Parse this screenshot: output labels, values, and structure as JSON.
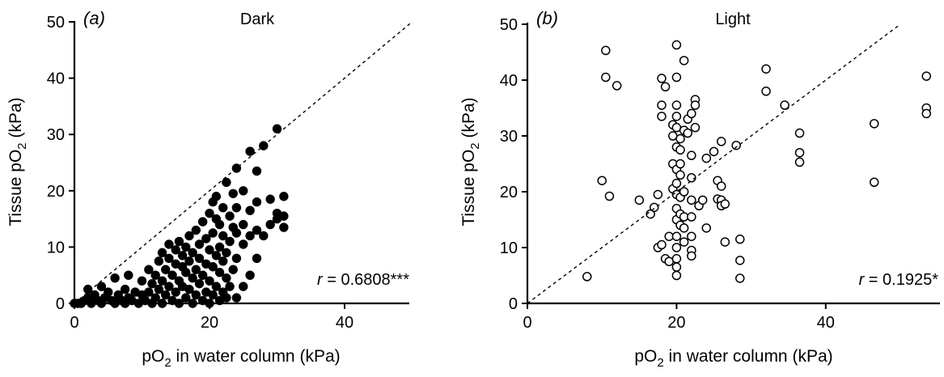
{
  "chart_data": [
    {
      "panel_label_letter": "a",
      "type": "scatter",
      "title": "Dark",
      "xlabel": {
        "pre": "pO",
        "sub": "2",
        "post": " in water column (kPa)"
      },
      "ylabel": {
        "pre": "Tissue pO",
        "sub": "2",
        "post": " (kPa)"
      },
      "xlim": [
        0,
        55
      ],
      "ylim": [
        0,
        50
      ],
      "xticks": [
        0,
        20,
        40
      ],
      "yticks": [
        0,
        10,
        20,
        30,
        40,
        50
      ],
      "marker": "filled-circle",
      "reference_line": "y = x (dashed)",
      "stat": {
        "r_label": "r",
        "r_value": " = 0.6808***"
      },
      "grid": false,
      "points": [
        [
          0,
          0
        ],
        [
          0.5,
          0
        ],
        [
          1,
          0
        ],
        [
          1.5,
          0.5
        ],
        [
          2,
          1
        ],
        [
          2,
          2.5
        ],
        [
          2.5,
          0
        ],
        [
          3,
          1.5
        ],
        [
          3.5,
          0.5
        ],
        [
          4,
          0
        ],
        [
          4,
          3
        ],
        [
          4.5,
          1
        ],
        [
          5,
          2
        ],
        [
          5.5,
          0.5
        ],
        [
          6,
          0
        ],
        [
          6,
          4.5
        ],
        [
          6.5,
          1.5
        ],
        [
          7,
          0.5
        ],
        [
          7.5,
          0
        ],
        [
          7.5,
          2.5
        ],
        [
          8,
          1
        ],
        [
          8,
          5
        ],
        [
          8.5,
          0.5
        ],
        [
          9,
          2
        ],
        [
          9.5,
          0
        ],
        [
          10,
          1.5
        ],
        [
          10,
          4
        ],
        [
          10.5,
          0.5
        ],
        [
          11,
          2
        ],
        [
          11,
          6
        ],
        [
          11.5,
          0
        ],
        [
          11.5,
          3.5
        ],
        [
          12,
          1
        ],
        [
          12,
          5
        ],
        [
          12.5,
          2.5
        ],
        [
          12.5,
          7.5
        ],
        [
          13,
          0
        ],
        [
          13,
          4
        ],
        [
          13,
          9
        ],
        [
          13.5,
          1.5
        ],
        [
          13.5,
          6
        ],
        [
          14,
          3
        ],
        [
          14,
          8
        ],
        [
          14,
          10.5
        ],
        [
          14.5,
          0.5
        ],
        [
          14.5,
          5
        ],
        [
          15,
          2
        ],
        [
          15,
          7
        ],
        [
          15,
          9.5
        ],
        [
          15.5,
          0
        ],
        [
          15.5,
          4
        ],
        [
          15.5,
          11
        ],
        [
          16,
          3
        ],
        [
          16,
          6.5
        ],
        [
          16,
          8.5
        ],
        [
          16.5,
          1
        ],
        [
          16.5,
          5.5
        ],
        [
          16.5,
          10
        ],
        [
          17,
          2.5
        ],
        [
          17,
          7.5
        ],
        [
          17,
          12
        ],
        [
          17.5,
          0
        ],
        [
          17.5,
          4.5
        ],
        [
          17.5,
          9
        ],
        [
          18,
          1.5
        ],
        [
          18,
          6
        ],
        [
          18,
          13
        ],
        [
          18.5,
          3.5
        ],
        [
          18.5,
          8
        ],
        [
          18.5,
          10.5
        ],
        [
          19,
          0.5
        ],
        [
          19,
          5
        ],
        [
          19,
          14.5
        ],
        [
          19.5,
          2
        ],
        [
          19.5,
          7
        ],
        [
          19.5,
          11.5
        ],
        [
          20,
          0
        ],
        [
          20,
          4
        ],
        [
          20,
          9.5
        ],
        [
          20,
          16
        ],
        [
          20.5,
          1.5
        ],
        [
          20.5,
          6.5
        ],
        [
          20.5,
          12.5
        ],
        [
          20.5,
          18
        ],
        [
          21,
          3
        ],
        [
          21,
          8.5
        ],
        [
          21,
          15
        ],
        [
          21,
          19
        ],
        [
          21.5,
          0.5
        ],
        [
          21.5,
          5.5
        ],
        [
          21.5,
          10
        ],
        [
          21.5,
          14
        ],
        [
          22,
          2
        ],
        [
          22,
          7.5
        ],
        [
          22,
          12
        ],
        [
          22,
          17
        ],
        [
          22.5,
          1
        ],
        [
          22.5,
          4.5
        ],
        [
          22.5,
          9
        ],
        [
          22.5,
          21.5
        ],
        [
          23,
          3
        ],
        [
          23,
          11
        ],
        [
          23,
          15.5
        ],
        [
          23.5,
          6
        ],
        [
          23.5,
          13.5
        ],
        [
          23.5,
          19.5
        ],
        [
          24,
          1
        ],
        [
          24,
          8
        ],
        [
          24,
          12.5
        ],
        [
          24,
          17
        ],
        [
          24,
          24
        ],
        [
          25,
          3
        ],
        [
          25,
          10.5
        ],
        [
          25,
          14
        ],
        [
          25,
          20
        ],
        [
          26,
          5
        ],
        [
          26,
          12
        ],
        [
          26,
          16.5
        ],
        [
          26,
          27
        ],
        [
          27,
          8
        ],
        [
          27,
          13
        ],
        [
          27,
          18
        ],
        [
          27,
          23.5
        ],
        [
          28,
          12
        ],
        [
          28,
          28
        ],
        [
          29,
          14
        ],
        [
          29,
          18.5
        ],
        [
          30,
          15
        ],
        [
          30,
          16
        ],
        [
          30,
          31
        ],
        [
          31,
          13.5
        ],
        [
          31,
          15.5
        ],
        [
          31,
          19
        ]
      ]
    },
    {
      "panel_label_letter": "b",
      "type": "scatter",
      "title": "Light",
      "xlabel": {
        "pre": "pO",
        "sub": "2",
        "post": " in water column (kPa)"
      },
      "ylabel": {
        "pre": "Tissue pO",
        "sub": "2",
        "post": " (kPa)"
      },
      "xlim": [
        0,
        55
      ],
      "ylim": [
        0,
        50
      ],
      "xticks": [
        0,
        20,
        40
      ],
      "yticks": [
        0,
        10,
        20,
        30,
        40,
        50
      ],
      "marker": "open-circle",
      "reference_line": "y = x (dashed)",
      "stat": {
        "r_label": "r",
        "r_value": " = 0.1925*"
      },
      "grid": false,
      "points": [
        [
          8,
          4.8
        ],
        [
          10,
          22
        ],
        [
          10.5,
          45.3
        ],
        [
          10.5,
          40.5
        ],
        [
          11,
          19.2
        ],
        [
          12,
          39
        ],
        [
          15,
          18.5
        ],
        [
          16.5,
          16
        ],
        [
          17,
          17.2
        ],
        [
          17.5,
          19.5
        ],
        [
          17.5,
          10
        ],
        [
          18,
          35.5
        ],
        [
          18,
          33.5
        ],
        [
          18,
          40.3
        ],
        [
          18,
          10.5
        ],
        [
          18.5,
          38.8
        ],
        [
          18.5,
          8
        ],
        [
          19,
          12
        ],
        [
          19,
          7.5
        ],
        [
          19.5,
          32
        ],
        [
          19.5,
          30
        ],
        [
          19.5,
          25
        ],
        [
          19.5,
          20.5
        ],
        [
          20,
          46.3
        ],
        [
          20,
          40.5
        ],
        [
          20,
          35.5
        ],
        [
          20,
          33.5
        ],
        [
          20,
          31.5
        ],
        [
          20,
          28
        ],
        [
          20,
          24
        ],
        [
          20,
          21.5
        ],
        [
          20,
          19.5
        ],
        [
          20,
          17
        ],
        [
          20,
          15
        ],
        [
          20,
          12
        ],
        [
          20,
          10
        ],
        [
          20,
          8
        ],
        [
          20,
          6.5
        ],
        [
          20,
          5
        ],
        [
          20.5,
          29.5
        ],
        [
          20.5,
          27.5
        ],
        [
          20.5,
          25
        ],
        [
          20.5,
          23
        ],
        [
          20.5,
          19
        ],
        [
          20.5,
          16
        ],
        [
          20.5,
          14
        ],
        [
          21,
          43.5
        ],
        [
          21,
          31
        ],
        [
          21,
          20
        ],
        [
          21,
          15.5
        ],
        [
          21,
          13.5
        ],
        [
          21,
          11
        ],
        [
          21.5,
          33
        ],
        [
          21.5,
          30.5
        ],
        [
          22,
          34
        ],
        [
          22,
          26.5
        ],
        [
          22,
          22.5
        ],
        [
          22,
          18.5
        ],
        [
          22,
          15.5
        ],
        [
          22,
          12
        ],
        [
          22,
          9.5
        ],
        [
          22,
          8.5
        ],
        [
          22.5,
          36.5
        ],
        [
          22.5,
          35.5
        ],
        [
          22.5,
          31.5
        ],
        [
          23,
          17.5
        ],
        [
          23.5,
          18.5
        ],
        [
          24,
          26
        ],
        [
          24,
          13.5
        ],
        [
          25,
          27.2
        ],
        [
          25.5,
          22
        ],
        [
          25.5,
          18.7
        ],
        [
          26,
          29
        ],
        [
          26,
          21
        ],
        [
          26,
          18.5
        ],
        [
          26,
          17.5
        ],
        [
          26.5,
          17.8
        ],
        [
          26.5,
          11
        ],
        [
          28,
          28.3
        ],
        [
          28.5,
          11.5
        ],
        [
          28.5,
          7.7
        ],
        [
          28.5,
          4.5
        ],
        [
          32,
          42
        ],
        [
          32,
          38
        ],
        [
          34.5,
          35.5
        ],
        [
          36.5,
          30.5
        ],
        [
          36.5,
          27
        ],
        [
          36.5,
          25.3
        ],
        [
          46.5,
          32.2
        ],
        [
          46.5,
          21.7
        ],
        [
          53.5,
          40.7
        ],
        [
          53.5,
          35
        ],
        [
          53.5,
          34
        ]
      ]
    }
  ]
}
